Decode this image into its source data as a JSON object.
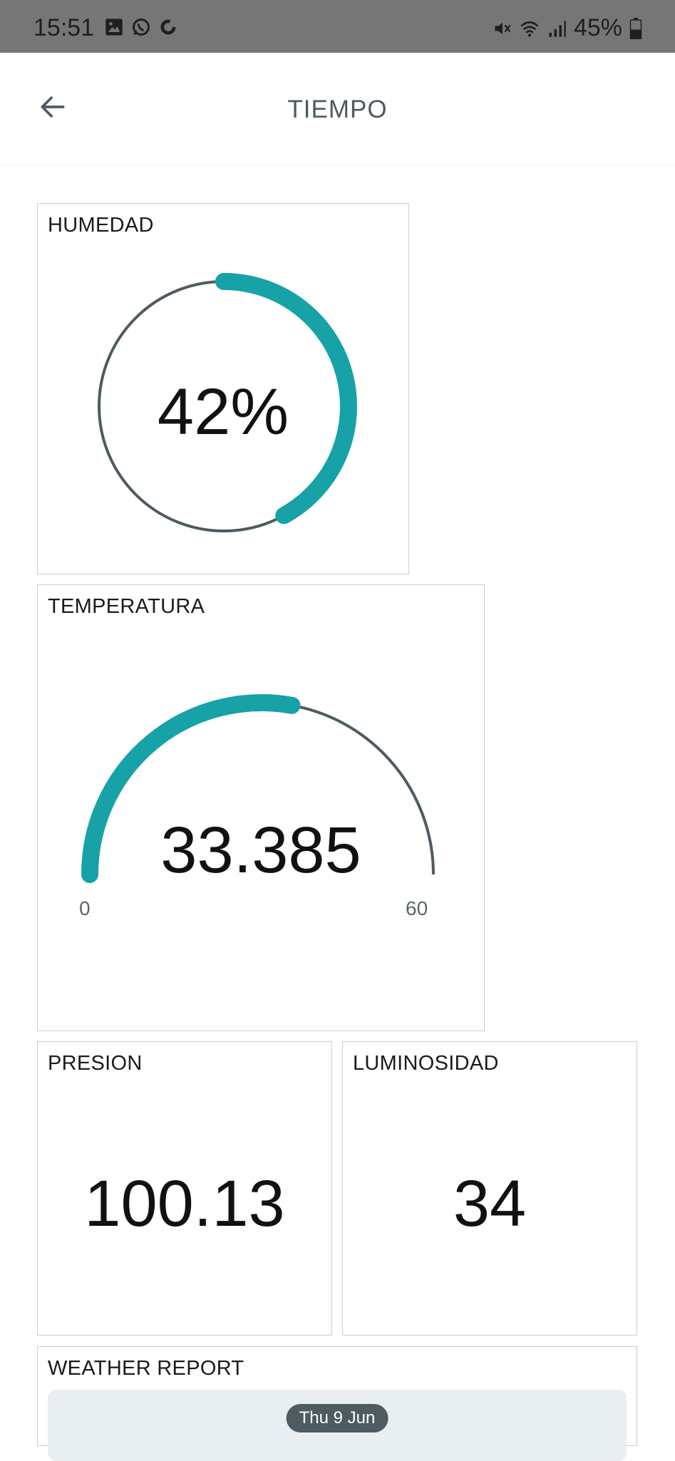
{
  "status_bar": {
    "time": "15:51",
    "battery": "45%",
    "left_icons": [
      "image-notification-icon",
      "whatsapp-icon",
      "sync-icon"
    ],
    "right_icons": [
      "mute-icon",
      "wifi-icon",
      "signal-icon",
      "battery-icon"
    ]
  },
  "app_bar": {
    "title": "TIEMPO",
    "back_icon": "arrow-left-icon"
  },
  "widgets": {
    "humedad": {
      "title": "HUMEDAD",
      "value_label": "42%",
      "percent": 42
    },
    "temperatura": {
      "title": "TEMPERATURA",
      "value_label": "33.385",
      "value": 33.385,
      "min_label": "0",
      "max_label": "60",
      "min": 0,
      "max": 60
    },
    "presion": {
      "title": "PRESION",
      "value_label": "100.13"
    },
    "luminosidad": {
      "title": "LUMINOSIDAD",
      "value_label": "34"
    },
    "weather_report": {
      "title": "WEATHER REPORT",
      "date_label": "Thu 9 Jun"
    }
  },
  "colors": {
    "accent": "#16a2a6",
    "track": "#4e5b61",
    "status_bar": "#767676",
    "card_border": "#c9cfd2"
  }
}
